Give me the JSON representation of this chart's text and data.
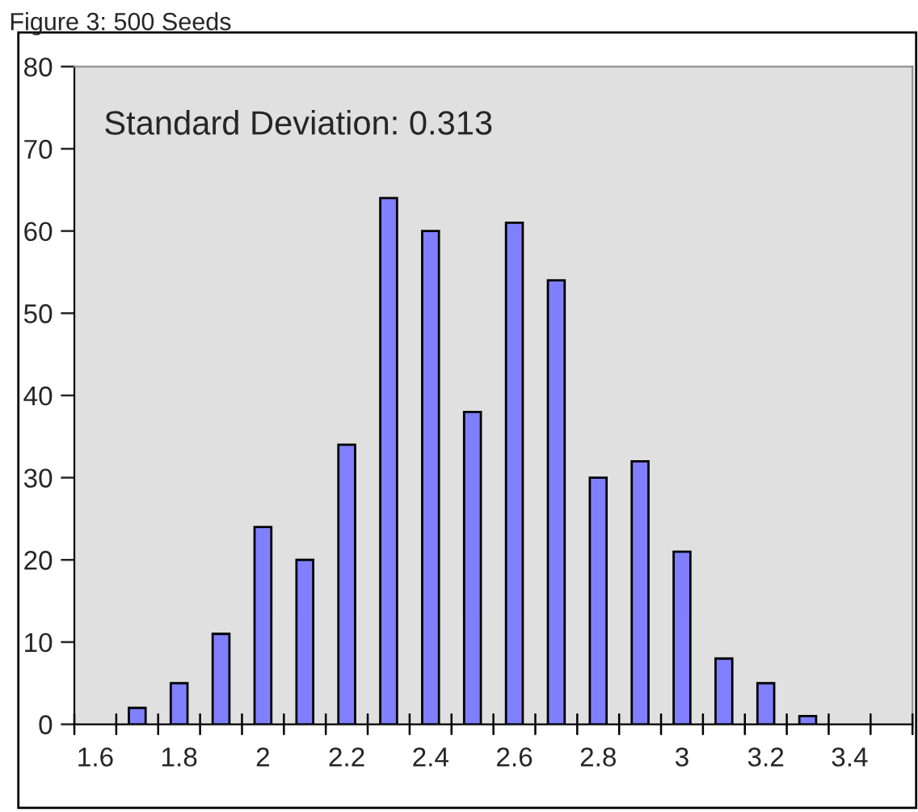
{
  "chart_data": {
    "type": "bar",
    "title": "Figure 3: 500 Seeds",
    "categories": [
      "1.6",
      null,
      "1.8",
      null,
      "2",
      null,
      "2.2",
      null,
      "2.4",
      null,
      "2.6",
      null,
      "2.8",
      null,
      "3",
      null,
      "3.2",
      null,
      "3.4",
      null
    ],
    "values": [
      0,
      2,
      5,
      11,
      24,
      20,
      34,
      64,
      60,
      38,
      61,
      54,
      30,
      32,
      21,
      8,
      5,
      1,
      0,
      0
    ],
    "color": "#8080ff",
    "ylim": [
      0,
      80
    ],
    "yticks": [
      0,
      10,
      20,
      30,
      40,
      50,
      60,
      70,
      80
    ],
    "annotations": [
      "Standard Deviation: 0.313"
    ],
    "grid": false,
    "legend": false
  }
}
